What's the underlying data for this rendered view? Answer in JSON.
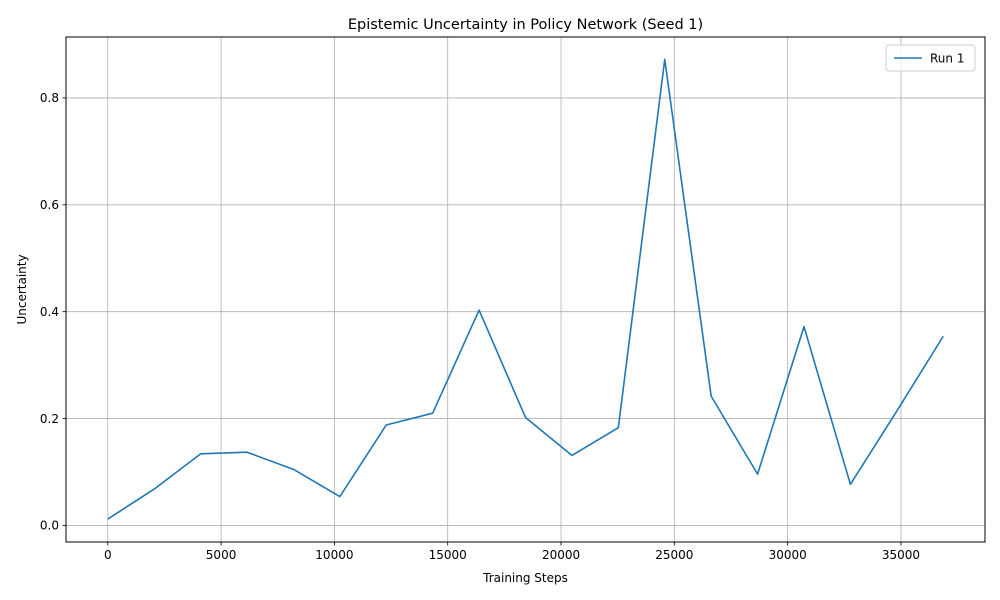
{
  "chart_data": {
    "type": "line",
    "title": "Epistemic Uncertainty in Policy Network (Seed 1)",
    "xlabel": "Training Steps",
    "ylabel": "Uncertainty",
    "xlim": [
      -1843,
      38707
    ],
    "ylim": [
      -0.031,
      0.914
    ],
    "xticks": [
      0,
      5000,
      10000,
      15000,
      20000,
      25000,
      30000,
      35000
    ],
    "yticks": [
      0.0,
      0.2,
      0.4,
      0.6,
      0.8
    ],
    "grid": true,
    "legend_position": "top-right",
    "series": [
      {
        "name": "Run 1",
        "color": "#1f77b4",
        "x": [
          0,
          2048,
          4096,
          6144,
          8192,
          10240,
          12288,
          14336,
          16384,
          18432,
          20480,
          22528,
          24576,
          26624,
          28672,
          30720,
          32768,
          34816,
          36864
        ],
        "y": [
          0.012,
          0.068,
          0.134,
          0.137,
          0.105,
          0.054,
          0.188,
          0.21,
          0.403,
          0.202,
          0.131,
          0.183,
          0.872,
          0.242,
          0.096,
          0.372,
          0.077,
          0.214,
          0.354
        ]
      }
    ]
  }
}
